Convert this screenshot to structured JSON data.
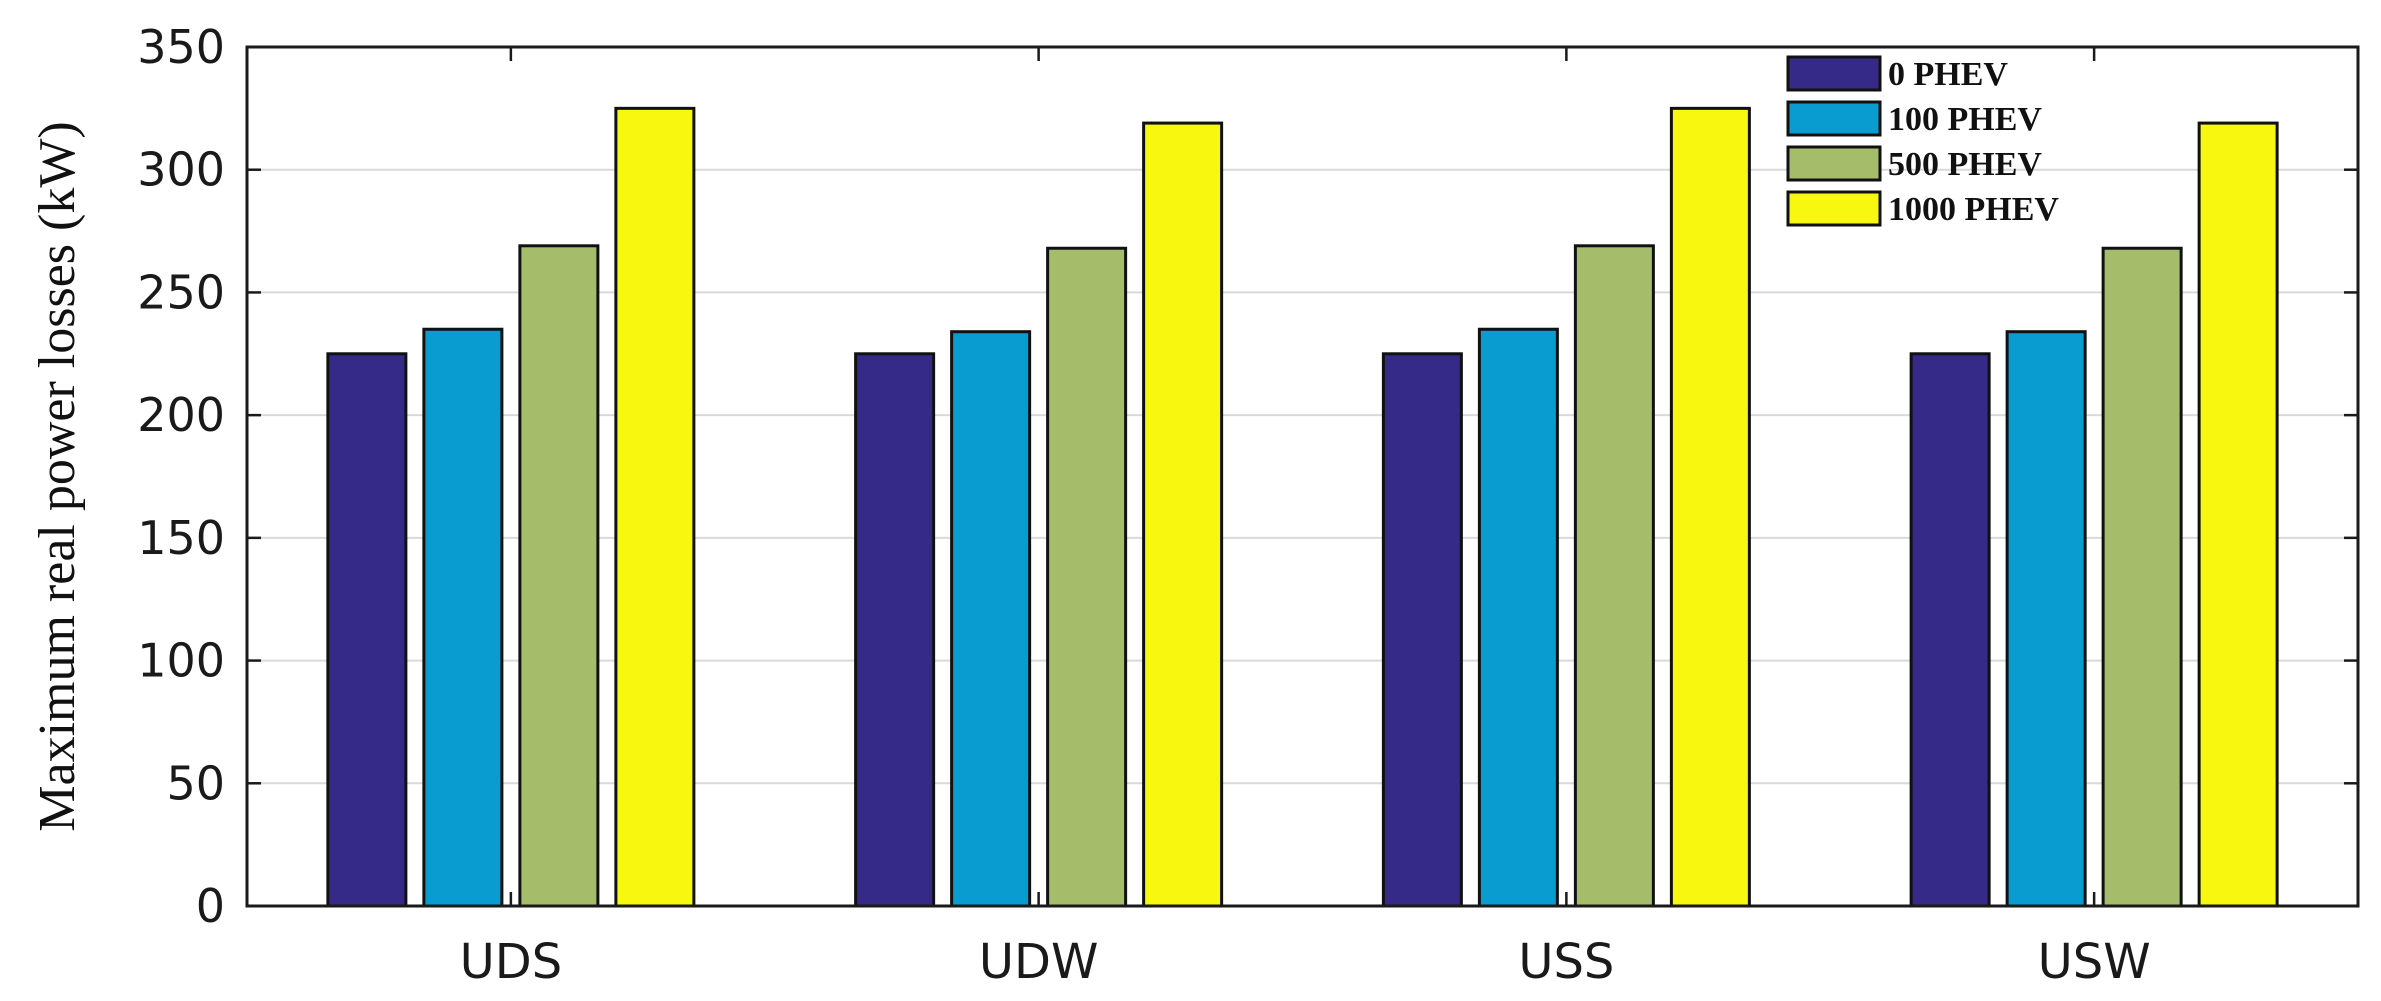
{
  "chart_data": {
    "type": "bar",
    "title": "",
    "xlabel": "",
    "ylabel": "Maximum real power losses (kW)",
    "ylim": [
      0,
      350
    ],
    "yticks": [
      0,
      50,
      100,
      150,
      200,
      250,
      300,
      350
    ],
    "grid": "horizontal",
    "legend_position": "top-right",
    "categories": [
      "UDS",
      "UDW",
      "USS",
      "USW"
    ],
    "series": [
      {
        "name": "0 PHEV",
        "color": "#352a87",
        "values": [
          225,
          225,
          225,
          225
        ]
      },
      {
        "name": "100 PHEV",
        "color": "#089cd0",
        "values": [
          235,
          234,
          235,
          234
        ]
      },
      {
        "name": "500 PHEV",
        "color": "#a5bd6a",
        "values": [
          269,
          268,
          269,
          268
        ]
      },
      {
        "name": "1000 PHEV",
        "color": "#f7f70f",
        "values": [
          325,
          319,
          325,
          319
        ]
      }
    ]
  }
}
